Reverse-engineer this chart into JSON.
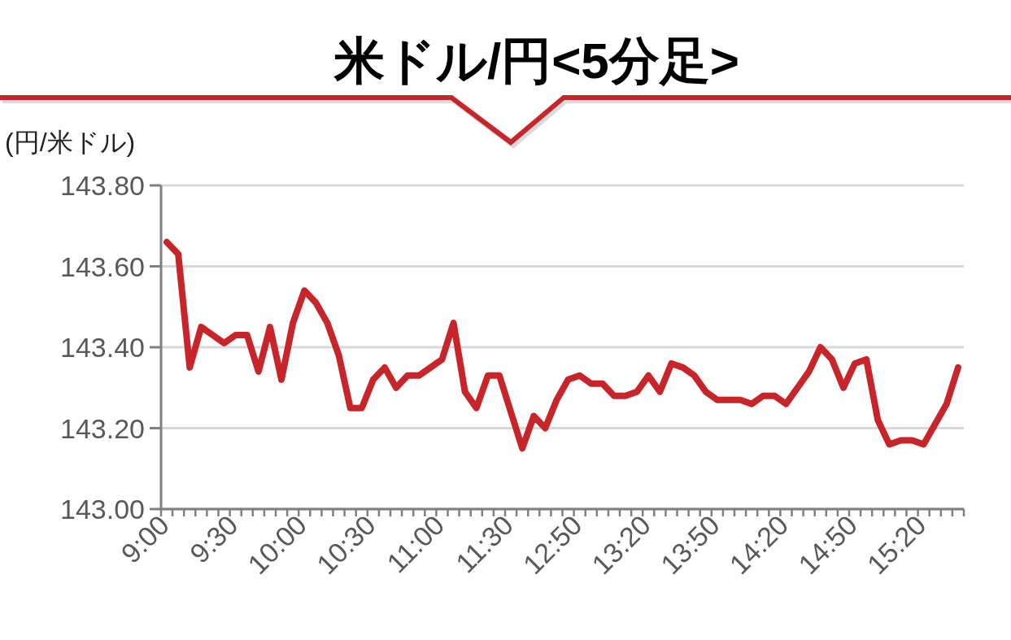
{
  "chart_data": {
    "type": "line",
    "title": "米ドル/円<5分足>",
    "ylabel": "(円/米ドル)",
    "categories": [
      "9:00",
      null,
      null,
      null,
      null,
      null,
      "9:30",
      null,
      null,
      null,
      null,
      null,
      "10:00",
      null,
      null,
      null,
      null,
      null,
      "10:30",
      null,
      null,
      null,
      null,
      null,
      "11:00",
      null,
      null,
      null,
      null,
      null,
      "11:30",
      null,
      null,
      null,
      null,
      null,
      "12:50",
      null,
      null,
      null,
      null,
      null,
      "13:20",
      null,
      null,
      null,
      null,
      null,
      "13:50",
      null,
      null,
      null,
      null,
      null,
      "14:20",
      null,
      null,
      null,
      null,
      null,
      "14:50",
      null,
      null,
      null,
      null,
      null,
      "15:20",
      null,
      null,
      null
    ],
    "series": [
      {
        "color": "#c8252a",
        "values": [
          143.66,
          143.63,
          143.35,
          143.45,
          143.43,
          143.41,
          143.43,
          143.43,
          143.34,
          143.45,
          143.32,
          143.46,
          143.54,
          143.51,
          143.46,
          143.38,
          143.25,
          143.25,
          143.32,
          143.35,
          143.3,
          143.33,
          143.33,
          143.35,
          143.37,
          143.46,
          143.29,
          143.25,
          143.33,
          143.33,
          143.24,
          143.15,
          143.23,
          143.2,
          143.27,
          143.32,
          143.33,
          143.31,
          143.31,
          143.28,
          143.28,
          143.29,
          143.33,
          143.29,
          143.36,
          143.35,
          143.33,
          143.29,
          143.27,
          143.27,
          143.27,
          143.26,
          143.28,
          143.28,
          143.26,
          143.3,
          143.34,
          143.4,
          143.37,
          143.3,
          143.36,
          143.37,
          143.22,
          143.16,
          143.17,
          143.17,
          143.16,
          143.21,
          143.26,
          143.35
        ]
      }
    ],
    "ylim": [
      143.0,
      143.8
    ],
    "yticks": [
      {
        "value": 143.0,
        "label": "143.00"
      },
      {
        "value": 143.2,
        "label": "143.20"
      },
      {
        "value": 143.4,
        "label": "143.40"
      },
      {
        "value": 143.6,
        "label": "143.60"
      },
      {
        "value": 143.8,
        "label": "143.80"
      }
    ],
    "grid": "y"
  }
}
